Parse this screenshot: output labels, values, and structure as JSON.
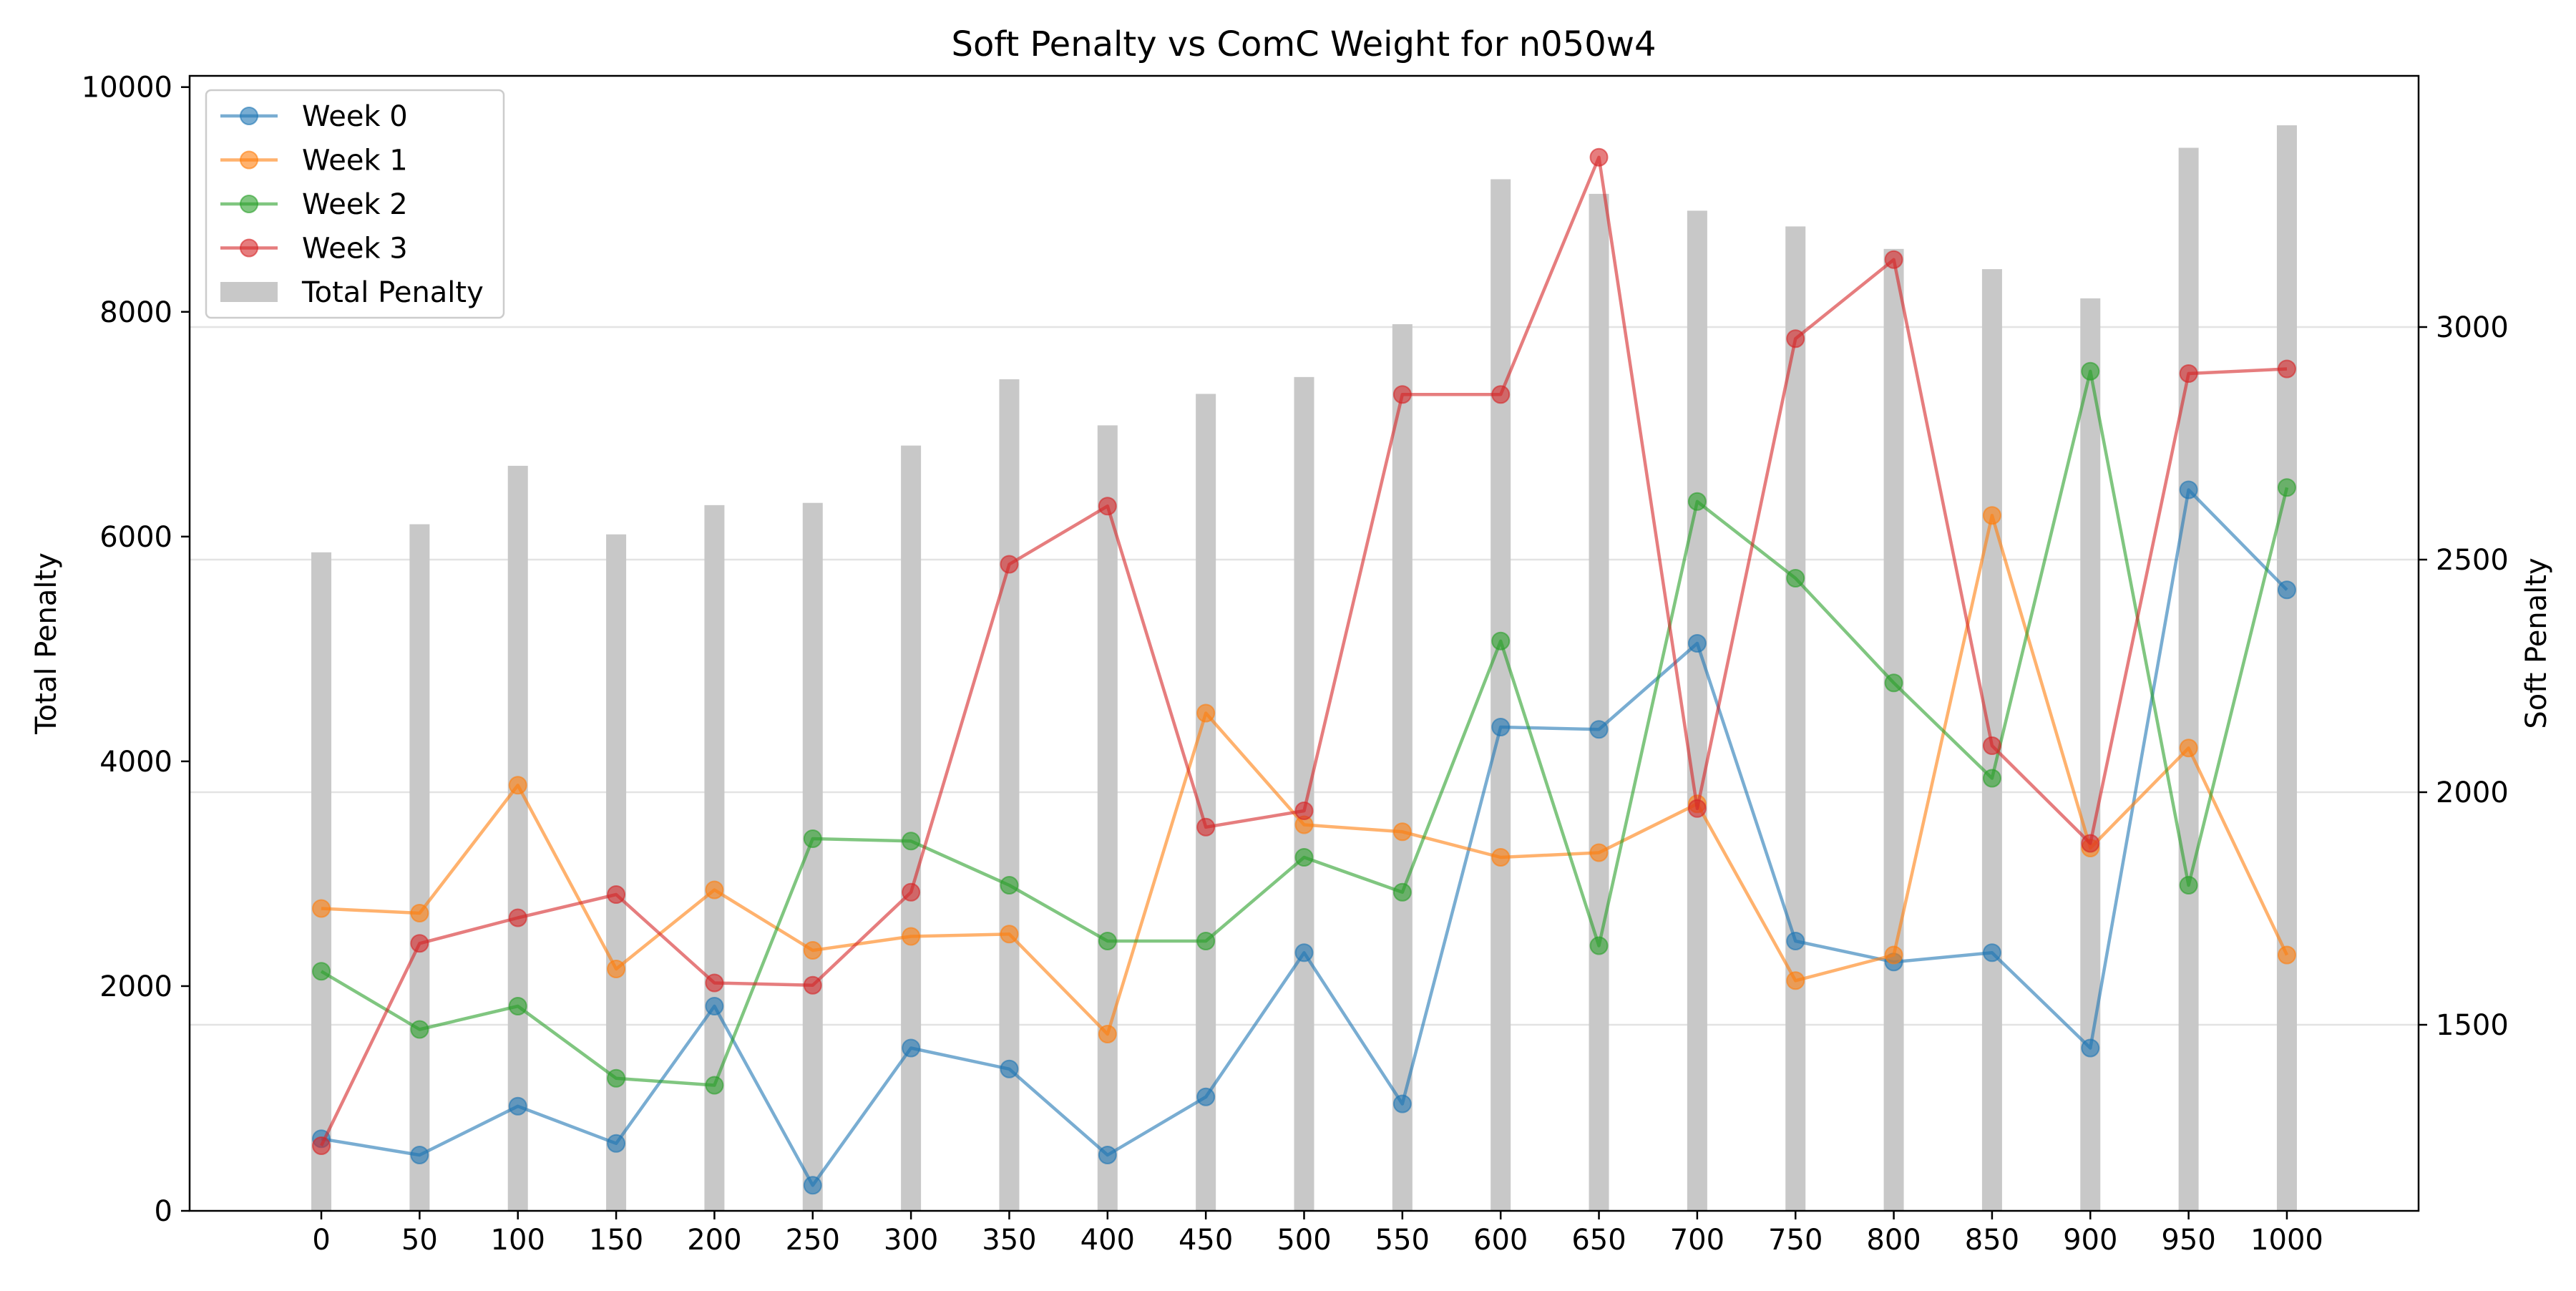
{
  "chart_data": {
    "type": "line",
    "title": "Soft Penalty vs ComC Weight for n050w4",
    "x": [
      0,
      50,
      100,
      150,
      200,
      250,
      300,
      350,
      400,
      450,
      500,
      550,
      600,
      650,
      700,
      750,
      800,
      850,
      900,
      950,
      1000
    ],
    "x_tick_labels": [
      "0",
      "50",
      "100",
      "150",
      "200",
      "250",
      "300",
      "350",
      "400",
      "450",
      "500",
      "550",
      "600",
      "650",
      "700",
      "750",
      "800",
      "850",
      "900",
      "950",
      "1000"
    ],
    "left_axis": {
      "label": "Total Penalty",
      "ylim": [
        0,
        10100
      ],
      "ticks": [
        0,
        2000,
        4000,
        6000,
        8000,
        10000
      ],
      "tick_labels": [
        "0",
        "2000",
        "4000",
        "6000",
        "8000",
        "10000"
      ]
    },
    "right_axis": {
      "label": "Soft Penalty",
      "ylim": [
        1100,
        3540
      ],
      "ticks": [
        1500,
        2000,
        2500,
        3000
      ],
      "tick_labels": [
        "1500",
        "2000",
        "2500",
        "3000"
      ]
    },
    "grid": "horizontal (right axis ticks)",
    "legend_position": "top-left",
    "bars": {
      "name": "Total Penalty",
      "axis": "left",
      "color": "#c8c8c8",
      "values": [
        5860,
        6110,
        6630,
        6020,
        6280,
        6300,
        6810,
        7400,
        6990,
        7270,
        7420,
        7890,
        9180,
        9050,
        8900,
        8760,
        8560,
        8380,
        8120,
        9460,
        9660
      ]
    },
    "series": [
      {
        "name": "Week 0",
        "axis": "right",
        "color": "#1f77b4",
        "values": [
          1255,
          1220,
          1325,
          1245,
          1540,
          1155,
          1450,
          1405,
          1220,
          1345,
          1655,
          1330,
          2140,
          2135,
          2320,
          1680,
          1635,
          1655,
          1450,
          2650,
          2435
        ]
      },
      {
        "name": "Week 1",
        "axis": "right",
        "color": "#ff7f0e",
        "values": [
          1750,
          1740,
          2015,
          1620,
          1790,
          1660,
          1690,
          1695,
          1480,
          2170,
          1930,
          1915,
          1860,
          1870,
          1975,
          1595,
          1650,
          2595,
          1880,
          2095,
          1650
        ]
      },
      {
        "name": "Week 2",
        "axis": "right",
        "color": "#2ca02c",
        "values": [
          1615,
          1490,
          1540,
          1385,
          1370,
          1900,
          1895,
          1800,
          1680,
          1680,
          1860,
          1785,
          2325,
          1670,
          2625,
          2460,
          2235,
          2030,
          2905,
          1800,
          2655
        ]
      },
      {
        "name": "Week 3",
        "axis": "right",
        "color": "#d62728",
        "values": [
          1240,
          1675,
          1730,
          1780,
          1590,
          1585,
          1785,
          2490,
          2615,
          1925,
          1960,
          2855,
          2855,
          3365,
          1965,
          2975,
          3145,
          2100,
          1890,
          2900,
          2910
        ]
      }
    ]
  }
}
